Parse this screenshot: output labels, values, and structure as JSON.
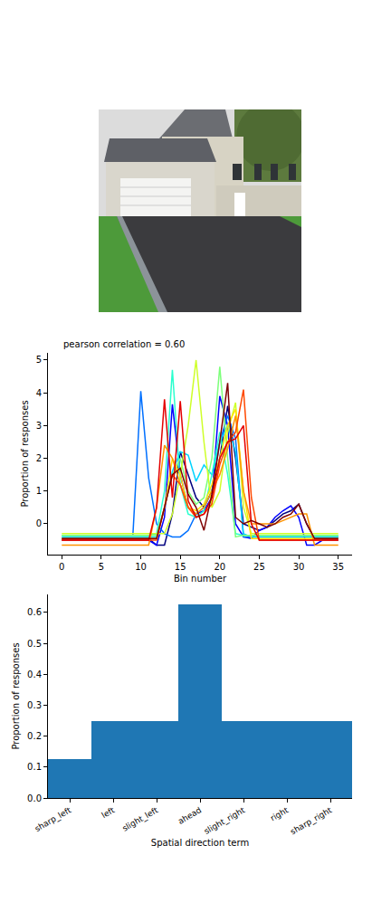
{
  "chart_data": [
    {
      "type": "line",
      "annotation": "pearson correlation = 0.60",
      "x_label": "Bin number",
      "y_label": "Proportion of responses",
      "xlim": [
        -1.75,
        36.75
      ],
      "ylim": [
        -0.94,
        5.22
      ],
      "xticks": [
        0,
        5,
        10,
        15,
        20,
        25,
        30,
        35
      ],
      "yticks": [
        0,
        1,
        2,
        3,
        4,
        5
      ],
      "grid": false,
      "x": [
        0,
        1,
        2,
        3,
        4,
        5,
        6,
        7,
        8,
        9,
        10,
        11,
        12,
        13,
        14,
        15,
        16,
        17,
        18,
        19,
        20,
        21,
        22,
        23,
        24,
        25,
        26,
        27,
        28,
        29,
        30,
        31,
        32,
        33,
        34,
        35
      ],
      "series": [
        {
          "color": "#00007f",
          "values": [
            -0.45,
            -0.45,
            -0.45,
            -0.45,
            -0.45,
            -0.45,
            -0.45,
            -0.45,
            -0.45,
            -0.45,
            -0.45,
            -0.45,
            -0.65,
            -0.65,
            0.3,
            2.2,
            1.5,
            0.8,
            0.5,
            1.0,
            2.0,
            3.6,
            2.0,
            0.0,
            -0.1,
            -0.2,
            -0.1,
            0.1,
            0.3,
            0.4,
            0.6,
            0.0,
            -0.45,
            -0.45,
            -0.45,
            -0.45
          ]
        },
        {
          "color": "#0000ff",
          "values": [
            -0.5,
            -0.5,
            -0.5,
            -0.5,
            -0.5,
            -0.5,
            -0.5,
            -0.5,
            -0.5,
            -0.5,
            -0.5,
            -0.5,
            -0.65,
            0.2,
            3.65,
            1.5,
            0.5,
            0.3,
            0.4,
            0.8,
            3.9,
            3.0,
            0.0,
            -0.4,
            -0.45,
            -0.2,
            -0.1,
            0.2,
            0.4,
            0.55,
            0.2,
            -0.65,
            -0.65,
            -0.5,
            -0.5,
            -0.5
          ]
        },
        {
          "color": "#0070ff",
          "values": [
            null,
            null,
            null,
            null,
            null,
            null,
            null,
            null,
            null,
            -0.35,
            4.05,
            1.4,
            0.0,
            -0.3,
            -0.4,
            -0.4,
            -0.2,
            0.3,
            0.5,
            1.0,
            2.5,
            3.3,
            2.6,
            -0.4,
            -0.4,
            -0.4,
            -0.4,
            -0.4,
            -0.4,
            -0.4,
            -0.4,
            -0.4,
            -0.4,
            -0.4,
            -0.4,
            -0.4
          ]
        },
        {
          "color": "#00d4ff",
          "values": [
            -0.4,
            -0.4,
            -0.4,
            -0.4,
            -0.4,
            -0.4,
            -0.4,
            -0.4,
            -0.4,
            -0.4,
            -0.4,
            -0.4,
            -0.4,
            0.5,
            1.6,
            2.2,
            2.1,
            1.3,
            1.8,
            1.5,
            2.5,
            3.0,
            2.2,
            -0.3,
            -0.4,
            -0.4,
            -0.4,
            -0.4,
            -0.4,
            -0.4,
            -0.4,
            -0.4,
            -0.4,
            -0.4,
            -0.4,
            -0.4
          ]
        },
        {
          "color": "#29ffce",
          "values": [
            -0.35,
            -0.35,
            -0.35,
            -0.35,
            -0.35,
            -0.35,
            -0.35,
            -0.35,
            -0.35,
            -0.35,
            -0.35,
            -0.35,
            -0.3,
            1.0,
            4.7,
            1.2,
            0.3,
            0.2,
            0.4,
            1.5,
            2.8,
            1.5,
            -0.3,
            -0.35,
            -0.35,
            -0.35,
            -0.35,
            -0.35,
            -0.35,
            -0.35,
            -0.35,
            -0.35,
            -0.35,
            -0.35,
            -0.35,
            -0.35
          ]
        },
        {
          "color": "#7dff7a",
          "values": [
            -0.35,
            -0.35,
            -0.35,
            -0.35,
            -0.35,
            -0.35,
            -0.35,
            -0.35,
            -0.35,
            -0.35,
            -0.35,
            -0.35,
            -0.35,
            0.5,
            1.5,
            2.0,
            1.0,
            0.6,
            0.8,
            2.0,
            4.8,
            2.0,
            -0.4,
            -0.35,
            -0.35,
            -0.35,
            -0.35,
            -0.35,
            -0.35,
            -0.35,
            -0.35,
            -0.35,
            -0.35,
            -0.35,
            -0.35,
            -0.35
          ]
        },
        {
          "color": "#ceff29",
          "values": [
            -0.3,
            -0.3,
            -0.3,
            -0.3,
            -0.3,
            -0.3,
            -0.3,
            -0.3,
            -0.3,
            -0.3,
            -0.3,
            -0.3,
            -0.3,
            -0.3,
            0.3,
            1.5,
            3.0,
            5.0,
            2.5,
            0.5,
            1.0,
            2.8,
            3.7,
            0.5,
            -0.3,
            -0.3,
            -0.3,
            -0.3,
            -0.3,
            -0.3,
            -0.3,
            -0.3,
            -0.3,
            -0.3,
            -0.3,
            -0.3
          ]
        },
        {
          "color": "#ffe500",
          "values": [
            -0.45,
            -0.45,
            -0.45,
            -0.45,
            -0.45,
            -0.45,
            -0.45,
            -0.45,
            -0.45,
            -0.45,
            -0.45,
            -0.45,
            -0.45,
            0.5,
            2.0,
            1.5,
            0.5,
            0.4,
            0.6,
            1.2,
            2.0,
            3.0,
            3.5,
            1.0,
            -0.45,
            -0.45,
            -0.45,
            -0.45,
            -0.45,
            -0.45,
            -0.45,
            -0.45,
            -0.45,
            -0.45,
            -0.45,
            -0.45
          ]
        },
        {
          "color": "#ff9400",
          "values": [
            -0.65,
            -0.65,
            -0.65,
            -0.65,
            -0.65,
            -0.65,
            -0.65,
            -0.65,
            -0.65,
            -0.65,
            -0.65,
            -0.65,
            0.5,
            2.4,
            2.0,
            1.2,
            0.5,
            0.3,
            0.5,
            1.0,
            1.5,
            2.3,
            3.3,
            1.0,
            0.0,
            0.0,
            0.0,
            0.0,
            0.1,
            0.2,
            0.3,
            0.3,
            -0.65,
            -0.65,
            -0.65,
            -0.65
          ]
        },
        {
          "color": "#ff4800",
          "values": [
            -0.5,
            -0.5,
            -0.5,
            -0.5,
            -0.5,
            -0.5,
            -0.5,
            -0.5,
            -0.5,
            -0.5,
            -0.5,
            -0.5,
            -0.5,
            0.5,
            1.5,
            1.2,
            0.5,
            0.2,
            0.3,
            0.6,
            1.8,
            2.5,
            2.8,
            4.1,
            0.8,
            -0.5,
            -0.5,
            -0.5,
            -0.5,
            -0.5,
            -0.5,
            -0.5,
            -0.5,
            -0.5,
            -0.5,
            -0.5
          ]
        },
        {
          "color": "#e40000",
          "values": [
            -0.5,
            -0.5,
            -0.5,
            -0.5,
            -0.5,
            -0.5,
            -0.5,
            -0.5,
            -0.5,
            -0.5,
            -0.5,
            -0.5,
            0.5,
            3.8,
            0.8,
            3.75,
            0.7,
            0.2,
            0.3,
            0.8,
            2.0,
            2.5,
            2.6,
            3.0,
            0.0,
            -0.5,
            -0.5,
            -0.5,
            -0.5,
            -0.5,
            -0.5,
            -0.5,
            -0.5,
            -0.5,
            -0.5,
            -0.5
          ]
        },
        {
          "color": "#7f0000",
          "values": [
            -0.45,
            -0.45,
            -0.45,
            -0.45,
            -0.45,
            -0.45,
            -0.45,
            -0.45,
            -0.45,
            -0.45,
            -0.45,
            -0.45,
            -0.45,
            0.5,
            1.5,
            1.7,
            0.9,
            0.5,
            -0.2,
            0.9,
            2.5,
            4.3,
            0.2,
            0.0,
            0.1,
            0.0,
            -0.1,
            0.0,
            0.2,
            0.3,
            0.6,
            0.0,
            -0.45,
            -0.45,
            -0.45,
            -0.45
          ]
        }
      ]
    },
    {
      "type": "bar",
      "x_label": "Spatial direction term",
      "y_label": "Proportion of responses",
      "categories": [
        "sharp_left",
        "left",
        "slight_left",
        "ahead",
        "slight_right",
        "right",
        "sharp_right"
      ],
      "values": [
        0.125,
        0.25,
        0.25,
        0.625,
        0.25,
        0.25,
        0.25
      ],
      "color": "#1f77b4",
      "ylim": [
        0,
        0.658
      ],
      "yticks": [
        {
          "value": 0,
          "label": "0.0"
        },
        {
          "value": 0.1,
          "label": "0.1"
        },
        {
          "value": 0.2,
          "label": "0.2"
        },
        {
          "value": 0.3,
          "label": "0.3"
        },
        {
          "value": 0.4,
          "label": "0.4"
        },
        {
          "value": 0.5,
          "label": "0.5"
        },
        {
          "value": 0.6,
          "label": "0.6"
        }
      ],
      "grid": false
    }
  ]
}
